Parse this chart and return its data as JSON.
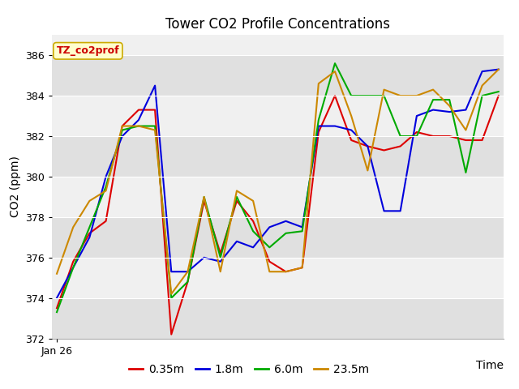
{
  "title": "Tower CO2 Profile Concentrations",
  "xlabel": "Time",
  "ylabel": "CO2 (ppm)",
  "ylim": [
    372,
    387
  ],
  "yticks": [
    372,
    374,
    376,
    378,
    380,
    382,
    384,
    386
  ],
  "x_label_first": "Jan 26",
  "annotation": "TZ_co2prof",
  "annotation_color": "#cc0000",
  "annotation_bg": "#ffffcc",
  "annotation_border": "#ccaa00",
  "plot_bg_light": "#f0f0f0",
  "plot_bg_dark": "#e0e0e0",
  "series": {
    "0.35m": {
      "color": "#dd0000",
      "values": [
        373.5,
        375.8,
        377.2,
        377.8,
        382.5,
        383.3,
        383.3,
        372.2,
        374.8,
        378.8,
        376.2,
        378.8,
        377.8,
        375.8,
        375.3,
        375.5,
        382.2,
        384.0,
        381.8,
        381.5,
        381.3,
        381.5,
        382.2,
        382.0,
        382.0,
        381.8,
        381.8,
        384.0
      ]
    },
    "1.8m": {
      "color": "#0000dd",
      "values": [
        374.0,
        375.5,
        377.0,
        380.0,
        382.0,
        382.8,
        384.5,
        375.3,
        375.3,
        376.0,
        375.8,
        376.8,
        376.5,
        377.5,
        377.8,
        377.5,
        382.5,
        382.5,
        382.3,
        381.5,
        378.3,
        378.3,
        383.0,
        383.3,
        383.2,
        383.3,
        385.2,
        385.3
      ]
    },
    "6.0m": {
      "color": "#00aa00",
      "values": [
        373.3,
        375.5,
        377.5,
        379.5,
        382.3,
        382.5,
        382.5,
        374.0,
        374.8,
        379.0,
        376.0,
        379.0,
        377.3,
        376.5,
        377.2,
        377.3,
        382.8,
        385.6,
        384.0,
        384.0,
        384.0,
        382.0,
        382.0,
        383.8,
        383.8,
        380.2,
        384.0,
        384.2
      ]
    },
    "23.5m": {
      "color": "#cc8800",
      "values": [
        375.2,
        377.5,
        378.8,
        379.3,
        382.5,
        382.5,
        382.3,
        374.2,
        375.3,
        379.0,
        375.3,
        379.3,
        378.8,
        375.3,
        375.3,
        375.5,
        384.6,
        385.2,
        383.0,
        380.3,
        384.3,
        384.0,
        384.0,
        384.3,
        383.5,
        382.3,
        384.5,
        385.3
      ]
    }
  },
  "legend_labels": [
    "0.35m",
    "1.8m",
    "6.0m",
    "23.5m"
  ],
  "legend_colors": [
    "#dd0000",
    "#0000dd",
    "#00aa00",
    "#cc8800"
  ],
  "title_fontsize": 12,
  "axis_fontsize": 10,
  "tick_fontsize": 9,
  "linewidth": 1.5
}
